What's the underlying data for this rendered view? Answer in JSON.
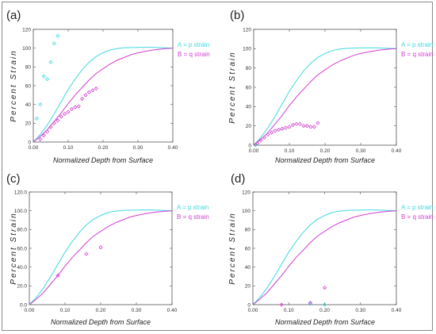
{
  "colors": {
    "p_strain": "#3fd8e0",
    "q_strain": "#d040d0"
  },
  "chart_data": [
    {
      "panel_label": "(a)",
      "type": "line+scatter",
      "xlabel": "Normalized Depth from Surface",
      "ylabel": "Percent Strain",
      "xlim": [
        0,
        0.4
      ],
      "ylim": [
        0,
        120
      ],
      "xticks": [
        "0.00",
        "0.10",
        "0.20",
        "0.30",
        "0.40"
      ],
      "yticks": [
        "0",
        "20",
        "40",
        "60",
        "80",
        "100",
        "120"
      ],
      "legend": [
        "A = p strain",
        "B = q strain"
      ],
      "series": [
        {
          "name": "A = p strain",
          "curve_x": [
            0,
            0.02,
            0.04,
            0.06,
            0.08,
            0.1,
            0.12,
            0.14,
            0.16,
            0.18,
            0.2,
            0.22,
            0.24,
            0.26,
            0.28,
            0.3,
            0.32,
            0.34,
            0.36,
            0.38,
            0.4
          ],
          "curve_y": [
            0,
            8,
            18,
            30,
            43,
            56,
            67,
            77,
            85,
            91,
            95,
            98,
            99.5,
            100.3,
            100.6,
            100.8,
            100.9,
            100.9,
            100.6,
            100.3,
            100
          ],
          "points": [
            [
              0.01,
              25
            ],
            [
              0.02,
              40
            ],
            [
              0.03,
              70
            ],
            [
              0.04,
              67
            ],
            [
              0.05,
              85
            ],
            [
              0.06,
              105
            ],
            [
              0.07,
              113
            ]
          ]
        },
        {
          "name": "B = q strain",
          "curve_x": [
            0,
            0.02,
            0.04,
            0.06,
            0.08,
            0.1,
            0.12,
            0.14,
            0.16,
            0.18,
            0.2,
            0.22,
            0.24,
            0.26,
            0.28,
            0.3,
            0.32,
            0.34,
            0.36,
            0.38,
            0.4
          ],
          "curve_y": [
            0,
            6,
            13,
            22,
            31,
            41,
            50,
            58,
            66,
            73,
            78,
            83,
            87,
            90,
            93,
            95,
            96.5,
            97.8,
            98.8,
            99.5,
            100
          ],
          "points": [
            [
              0.02,
              3
            ],
            [
              0.03,
              7
            ],
            [
              0.04,
              11
            ],
            [
              0.05,
              16
            ],
            [
              0.06,
              20
            ],
            [
              0.07,
              23
            ],
            [
              0.08,
              27
            ],
            [
              0.09,
              30
            ],
            [
              0.1,
              32
            ],
            [
              0.11,
              35
            ],
            [
              0.12,
              37
            ],
            [
              0.13,
              38
            ],
            [
              0.14,
              46
            ],
            [
              0.15,
              50
            ],
            [
              0.16,
              53
            ],
            [
              0.17,
              55
            ],
            [
              0.18,
              57
            ]
          ]
        }
      ]
    },
    {
      "panel_label": "(b)",
      "type": "line+scatter",
      "xlabel": "Normalized Depth from Surface",
      "ylabel": "Percent Strain",
      "xlim": [
        0,
        0.4
      ],
      "ylim": [
        0,
        120
      ],
      "xticks": [
        "0.00",
        "0.10",
        "0.20",
        "0.30",
        "0.40"
      ],
      "yticks": [
        "0",
        "20",
        "40",
        "60",
        "80",
        "100",
        "120"
      ],
      "legend": [
        "A = p strain",
        "B = q strain"
      ],
      "series": [
        {
          "name": "A = p strain",
          "curve_x": [
            0,
            0.02,
            0.04,
            0.06,
            0.08,
            0.1,
            0.12,
            0.14,
            0.16,
            0.18,
            0.2,
            0.22,
            0.24,
            0.26,
            0.28,
            0.3,
            0.32,
            0.34,
            0.36,
            0.38,
            0.4
          ],
          "curve_y": [
            0,
            8,
            18,
            30,
            43,
            56,
            67,
            77,
            85,
            91,
            95,
            98,
            99.5,
            100.3,
            100.6,
            100.8,
            100.9,
            100.9,
            100.6,
            100.3,
            100
          ],
          "points": [
            [
              0.005,
              0
            ]
          ]
        },
        {
          "name": "B = q strain",
          "curve_x": [
            0,
            0.02,
            0.04,
            0.06,
            0.08,
            0.1,
            0.12,
            0.14,
            0.16,
            0.18,
            0.2,
            0.22,
            0.24,
            0.26,
            0.28,
            0.3,
            0.32,
            0.34,
            0.36,
            0.38,
            0.4
          ],
          "curve_y": [
            0,
            6,
            13,
            22,
            31,
            41,
            50,
            58,
            66,
            73,
            78,
            83,
            87,
            90,
            93,
            95,
            96.5,
            97.8,
            98.8,
            99.5,
            100
          ],
          "points": [
            [
              0.01,
              2
            ],
            [
              0.02,
              5
            ],
            [
              0.03,
              8
            ],
            [
              0.04,
              11
            ],
            [
              0.05,
              13
            ],
            [
              0.06,
              15
            ],
            [
              0.07,
              16
            ],
            [
              0.08,
              17
            ],
            [
              0.09,
              18
            ],
            [
              0.1,
              19
            ],
            [
              0.11,
              21
            ],
            [
              0.12,
              22
            ],
            [
              0.13,
              22
            ],
            [
              0.14,
              20
            ],
            [
              0.15,
              20
            ],
            [
              0.16,
              19
            ],
            [
              0.17,
              19
            ],
            [
              0.18,
              23
            ]
          ]
        }
      ]
    },
    {
      "panel_label": "(c)",
      "type": "line+scatter",
      "xlabel": "Normalized Depth from Surface",
      "ylabel": "Percent Strain",
      "xlim": [
        0,
        0.4
      ],
      "ylim": [
        0,
        120
      ],
      "xticks": [
        "0.00",
        "0.10",
        "0.20",
        "0.30",
        "0.40"
      ],
      "yticks": [
        "0.0",
        "20.0",
        "40.0",
        "60.0",
        "80.0",
        "100.0",
        "120.0"
      ],
      "legend": [
        "A = p strain",
        "B = q strain"
      ],
      "series": [
        {
          "name": "A = p strain",
          "curve_x": [
            0,
            0.02,
            0.04,
            0.06,
            0.08,
            0.1,
            0.12,
            0.14,
            0.16,
            0.18,
            0.2,
            0.22,
            0.24,
            0.26,
            0.28,
            0.3,
            0.32,
            0.34,
            0.36,
            0.38,
            0.4
          ],
          "curve_y": [
            0,
            8,
            18,
            30,
            43,
            56,
            67,
            77,
            85,
            91,
            95,
            98,
            99.5,
            100.3,
            100.6,
            100.8,
            100.9,
            100.9,
            100.6,
            100.3,
            100
          ],
          "points": []
        },
        {
          "name": "B = q strain",
          "curve_x": [
            0,
            0.02,
            0.04,
            0.06,
            0.08,
            0.1,
            0.12,
            0.14,
            0.16,
            0.18,
            0.2,
            0.22,
            0.24,
            0.26,
            0.28,
            0.3,
            0.32,
            0.34,
            0.36,
            0.38,
            0.4
          ],
          "curve_y": [
            0,
            6,
            13,
            22,
            31,
            41,
            50,
            58,
            66,
            73,
            78,
            83,
            87,
            90,
            93,
            95,
            96.5,
            97.8,
            98.8,
            99.5,
            100
          ],
          "points": [
            [
              0.08,
              31
            ],
            [
              0.16,
              54
            ],
            [
              0.2,
              61
            ]
          ]
        }
      ]
    },
    {
      "panel_label": "(d)",
      "type": "line+scatter",
      "xlabel": "Normalized Depth from Surface",
      "ylabel": "Percent Strain",
      "xlim": [
        0,
        0.4
      ],
      "ylim": [
        0,
        120
      ],
      "xticks": [
        "0.00",
        "0.10",
        "0.20",
        "0.30",
        "0.40"
      ],
      "yticks": [
        "0",
        "20",
        "40",
        "60",
        "80",
        "100",
        "120"
      ],
      "legend": [
        "A = p strain",
        "B = q strain"
      ],
      "series": [
        {
          "name": "A = p strain",
          "curve_x": [
            0,
            0.02,
            0.04,
            0.06,
            0.08,
            0.1,
            0.12,
            0.14,
            0.16,
            0.18,
            0.2,
            0.22,
            0.24,
            0.26,
            0.28,
            0.3,
            0.32,
            0.34,
            0.36,
            0.38,
            0.4
          ],
          "curve_y": [
            0,
            8,
            18,
            30,
            43,
            56,
            67,
            77,
            85,
            91,
            95,
            98,
            99.5,
            100.3,
            100.6,
            100.8,
            100.9,
            100.9,
            100.6,
            100.3,
            100
          ],
          "points": [
            [
              0.16,
              1
            ],
            [
              0.2,
              0
            ]
          ]
        },
        {
          "name": "B = q strain",
          "curve_x": [
            0,
            0.02,
            0.04,
            0.06,
            0.08,
            0.1,
            0.12,
            0.14,
            0.16,
            0.18,
            0.2,
            0.22,
            0.24,
            0.26,
            0.28,
            0.3,
            0.32,
            0.34,
            0.36,
            0.38,
            0.4
          ],
          "curve_y": [
            0,
            6,
            13,
            22,
            31,
            41,
            50,
            58,
            66,
            73,
            78,
            83,
            87,
            90,
            93,
            95,
            96.5,
            97.8,
            98.8,
            99.5,
            100
          ],
          "points": [
            [
              0.08,
              0
            ],
            [
              0.16,
              2
            ],
            [
              0.2,
              18
            ]
          ]
        }
      ]
    }
  ]
}
